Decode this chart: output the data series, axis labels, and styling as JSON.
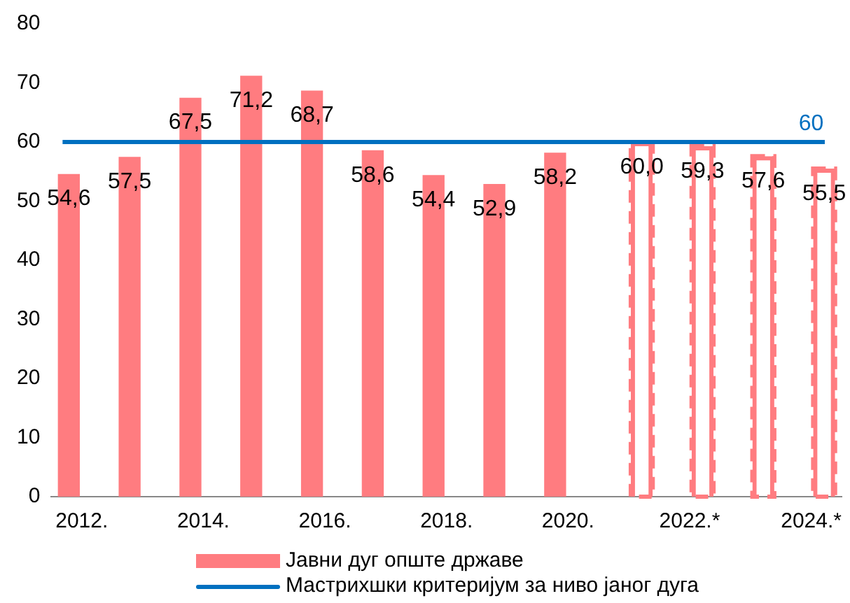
{
  "chart_data": {
    "type": "bar",
    "categories": [
      "2012.",
      null,
      "2014.",
      null,
      "2016.",
      null,
      "2018.",
      null,
      "2020.",
      null,
      "2022.*",
      null,
      "2024.*"
    ],
    "series": [
      {
        "name": "Јавни дуг опште државе",
        "color": "#ff7c80",
        "values": [
          54.6,
          57.5,
          67.5,
          71.2,
          68.7,
          58.6,
          54.4,
          52.9,
          58.2,
          null,
          null,
          null,
          null
        ],
        "value_labels": [
          "54,6",
          "57,5",
          "67,5",
          "71,2",
          "68,7",
          "58,6",
          "54,4",
          "52,9",
          "58,2",
          null,
          null,
          null,
          null
        ]
      },
      {
        "color": "#ff7c80",
        "line_style": "dashed",
        "values": [
          null,
          null,
          null,
          null,
          null,
          null,
          null,
          null,
          null,
          60.0,
          59.3,
          57.6,
          55.5
        ],
        "value_labels": [
          null,
          null,
          null,
          null,
          null,
          null,
          null,
          null,
          null,
          "60,0",
          "59,3",
          "57,6",
          "55,5"
        ]
      }
    ],
    "ylim": [
      0,
      80
    ],
    "yticks": [
      0,
      10,
      20,
      30,
      40,
      50,
      60,
      70,
      80
    ],
    "grid": false,
    "legend": "bottom",
    "ref_lines": [
      {
        "axis": "y",
        "value": 60,
        "label": "Мастрихшки критеријум за ниво јаног дуга",
        "color": "#0070c0"
      }
    ],
    "annotations": [
      {
        "text": "60",
        "x": "2024.*",
        "y": 60
      }
    ]
  }
}
